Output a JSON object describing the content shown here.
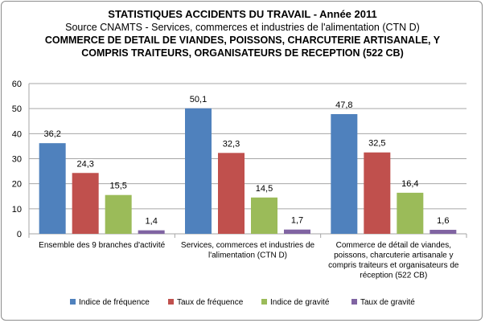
{
  "title_lines": [
    "STATISTIQUES ACCIDENTS DU TRAVAIL - Année 2011",
    "Source CNAMTS -  Services, commerces et industries de l'alimentation (CTN D)",
    "COMMERCE DE DETAIL DE VIANDES, POISSONS, CHARCUTERIE ARTISANALE, Y",
    "COMPRIS TRAITEURS, ORGANISATEURS DE RECEPTION (522 CB)"
  ],
  "colors": {
    "series": [
      "#4f81bd",
      "#c0504d",
      "#9bbb59",
      "#8064a2"
    ],
    "grid": "#a6a6a6",
    "border": "#8c8c8c"
  },
  "chart_data": {
    "type": "bar",
    "ylim": [
      0,
      60
    ],
    "yticks": [
      0,
      10,
      20,
      30,
      40,
      50,
      60
    ],
    "grid": true,
    "legend_position": "bottom",
    "categories": [
      [
        "Ensemble des 9 branches d'activité"
      ],
      [
        "Services, commerces et industries de",
        "l'alimentation (CTN D)"
      ],
      [
        "Commerce de détail de viandes,",
        "poissons, charcuterie artisanale y",
        "compris traiteurs et organisateurs de",
        "réception (522 CB)"
      ]
    ],
    "series": [
      {
        "name": "Indice de fréquence",
        "values": [
          36.2,
          50.1,
          47.8
        ],
        "labels": [
          "36,2",
          "50,1",
          "47,8"
        ]
      },
      {
        "name": "Taux de fréquence",
        "values": [
          24.3,
          32.3,
          32.5
        ],
        "labels": [
          "24,3",
          "32,3",
          "32,5"
        ]
      },
      {
        "name": "Indice de gravité",
        "values": [
          15.5,
          14.5,
          16.4
        ],
        "labels": [
          "15,5",
          "14,5",
          "16,4"
        ]
      },
      {
        "name": "Taux de gravité",
        "values": [
          1.4,
          1.7,
          1.6
        ],
        "labels": [
          "1,4",
          "1,7",
          "1,6"
        ]
      }
    ]
  }
}
